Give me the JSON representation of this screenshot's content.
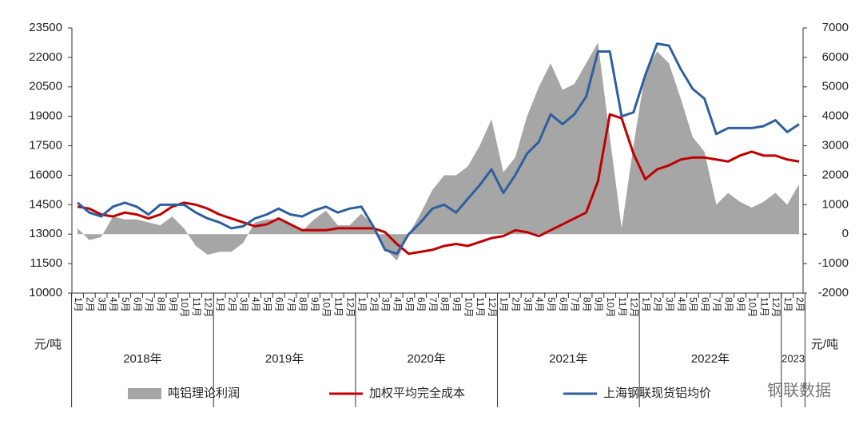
{
  "chart_data": {
    "type": "line",
    "categories": [
      "1月",
      "2月",
      "3月",
      "4月",
      "5月",
      "6月",
      "7月",
      "8月",
      "9月",
      "10月",
      "11月",
      "12月",
      "1月",
      "2月",
      "3月",
      "4月",
      "5月",
      "6月",
      "7月",
      "8月",
      "9月",
      "10月",
      "11月",
      "12月",
      "1月",
      "2月",
      "3月",
      "4月",
      "5月",
      "6月",
      "7月",
      "8月",
      "9月",
      "10月",
      "11月",
      "12月",
      "1月",
      "2月",
      "3月",
      "4月",
      "5月",
      "6月",
      "7月",
      "8月",
      "9月",
      "10月",
      "11月",
      "12月",
      "1月",
      "2月",
      "3月",
      "4月",
      "5月",
      "6月",
      "7月",
      "8月",
      "9月",
      "10月",
      "11月",
      "12月",
      "1月",
      "2月"
    ],
    "year_labels": [
      "2018年",
      "2019年",
      "2020年",
      "2021年",
      "2022年",
      "2023"
    ],
    "y_unit": "元/吨",
    "y2_unit": "元/吨",
    "watermark": "钢联数据",
    "ylim": [
      10000,
      23500
    ],
    "yticks": [
      10000,
      11500,
      13000,
      14500,
      16000,
      17500,
      19000,
      20500,
      22000,
      23500
    ],
    "y2lim": [
      -2000,
      7000
    ],
    "y2ticks": [
      -2000,
      -1000,
      0,
      1000,
      2000,
      3000,
      4000,
      5000,
      6000,
      7000
    ],
    "series": [
      {
        "name": "吨铝理论利润",
        "type": "area",
        "axis": "y2",
        "color": "#a6a6a6",
        "values": [
          200,
          -200,
          -100,
          600,
          500,
          500,
          400,
          300,
          600,
          200,
          -400,
          -700,
          -600,
          -600,
          -300,
          400,
          500,
          500,
          300,
          100,
          500,
          800,
          300,
          300,
          700,
          300,
          -500,
          -900,
          0,
          700,
          1500,
          2000,
          2000,
          2300,
          3000,
          3900,
          2100,
          2600,
          4000,
          5000,
          5800,
          4900,
          5100,
          5800,
          6500,
          3300,
          200,
          3000,
          5500,
          6200,
          5800,
          4600,
          3300,
          2800,
          1000,
          1400,
          1100,
          900,
          1100,
          1400,
          1000,
          1700
        ]
      },
      {
        "name": "加权平均完全成本",
        "type": "line",
        "color": "#c00000",
        "values": [
          14400,
          14300,
          14000,
          13900,
          14100,
          14000,
          13800,
          14000,
          14400,
          14600,
          14500,
          14300,
          14000,
          13800,
          13600,
          13400,
          13500,
          13800,
          13500,
          13200,
          13200,
          13200,
          13300,
          13300,
          13300,
          13300,
          13100,
          12500,
          12000,
          12100,
          12200,
          12400,
          12500,
          12400,
          12600,
          12800,
          12900,
          13200,
          13100,
          12900,
          13200,
          13500,
          13800,
          14100,
          15700,
          19100,
          18900,
          17100,
          15800,
          16300,
          16500,
          16800,
          16900,
          16900,
          16800,
          16700,
          17000,
          17200,
          17000,
          17000,
          16800,
          16700
        ]
      },
      {
        "name": "上海钢联现货铝均价",
        "type": "line",
        "color": "#2e5f9e",
        "values": [
          14600,
          14100,
          13900,
          14400,
          14600,
          14400,
          14000,
          14500,
          14500,
          14500,
          14100,
          13800,
          13600,
          13300,
          13400,
          13800,
          14000,
          14300,
          14000,
          13900,
          14200,
          14400,
          14100,
          14300,
          14400,
          13400,
          12200,
          12000,
          13000,
          13600,
          14300,
          14500,
          14100,
          14800,
          15500,
          16300,
          15100,
          16000,
          17100,
          17700,
          19100,
          18600,
          19100,
          20000,
          22300,
          22300,
          19000,
          19200,
          21100,
          22700,
          22600,
          21400,
          20400,
          19900,
          18100,
          18400,
          18400,
          18400,
          18500,
          18800,
          18200,
          18600
        ]
      }
    ]
  }
}
